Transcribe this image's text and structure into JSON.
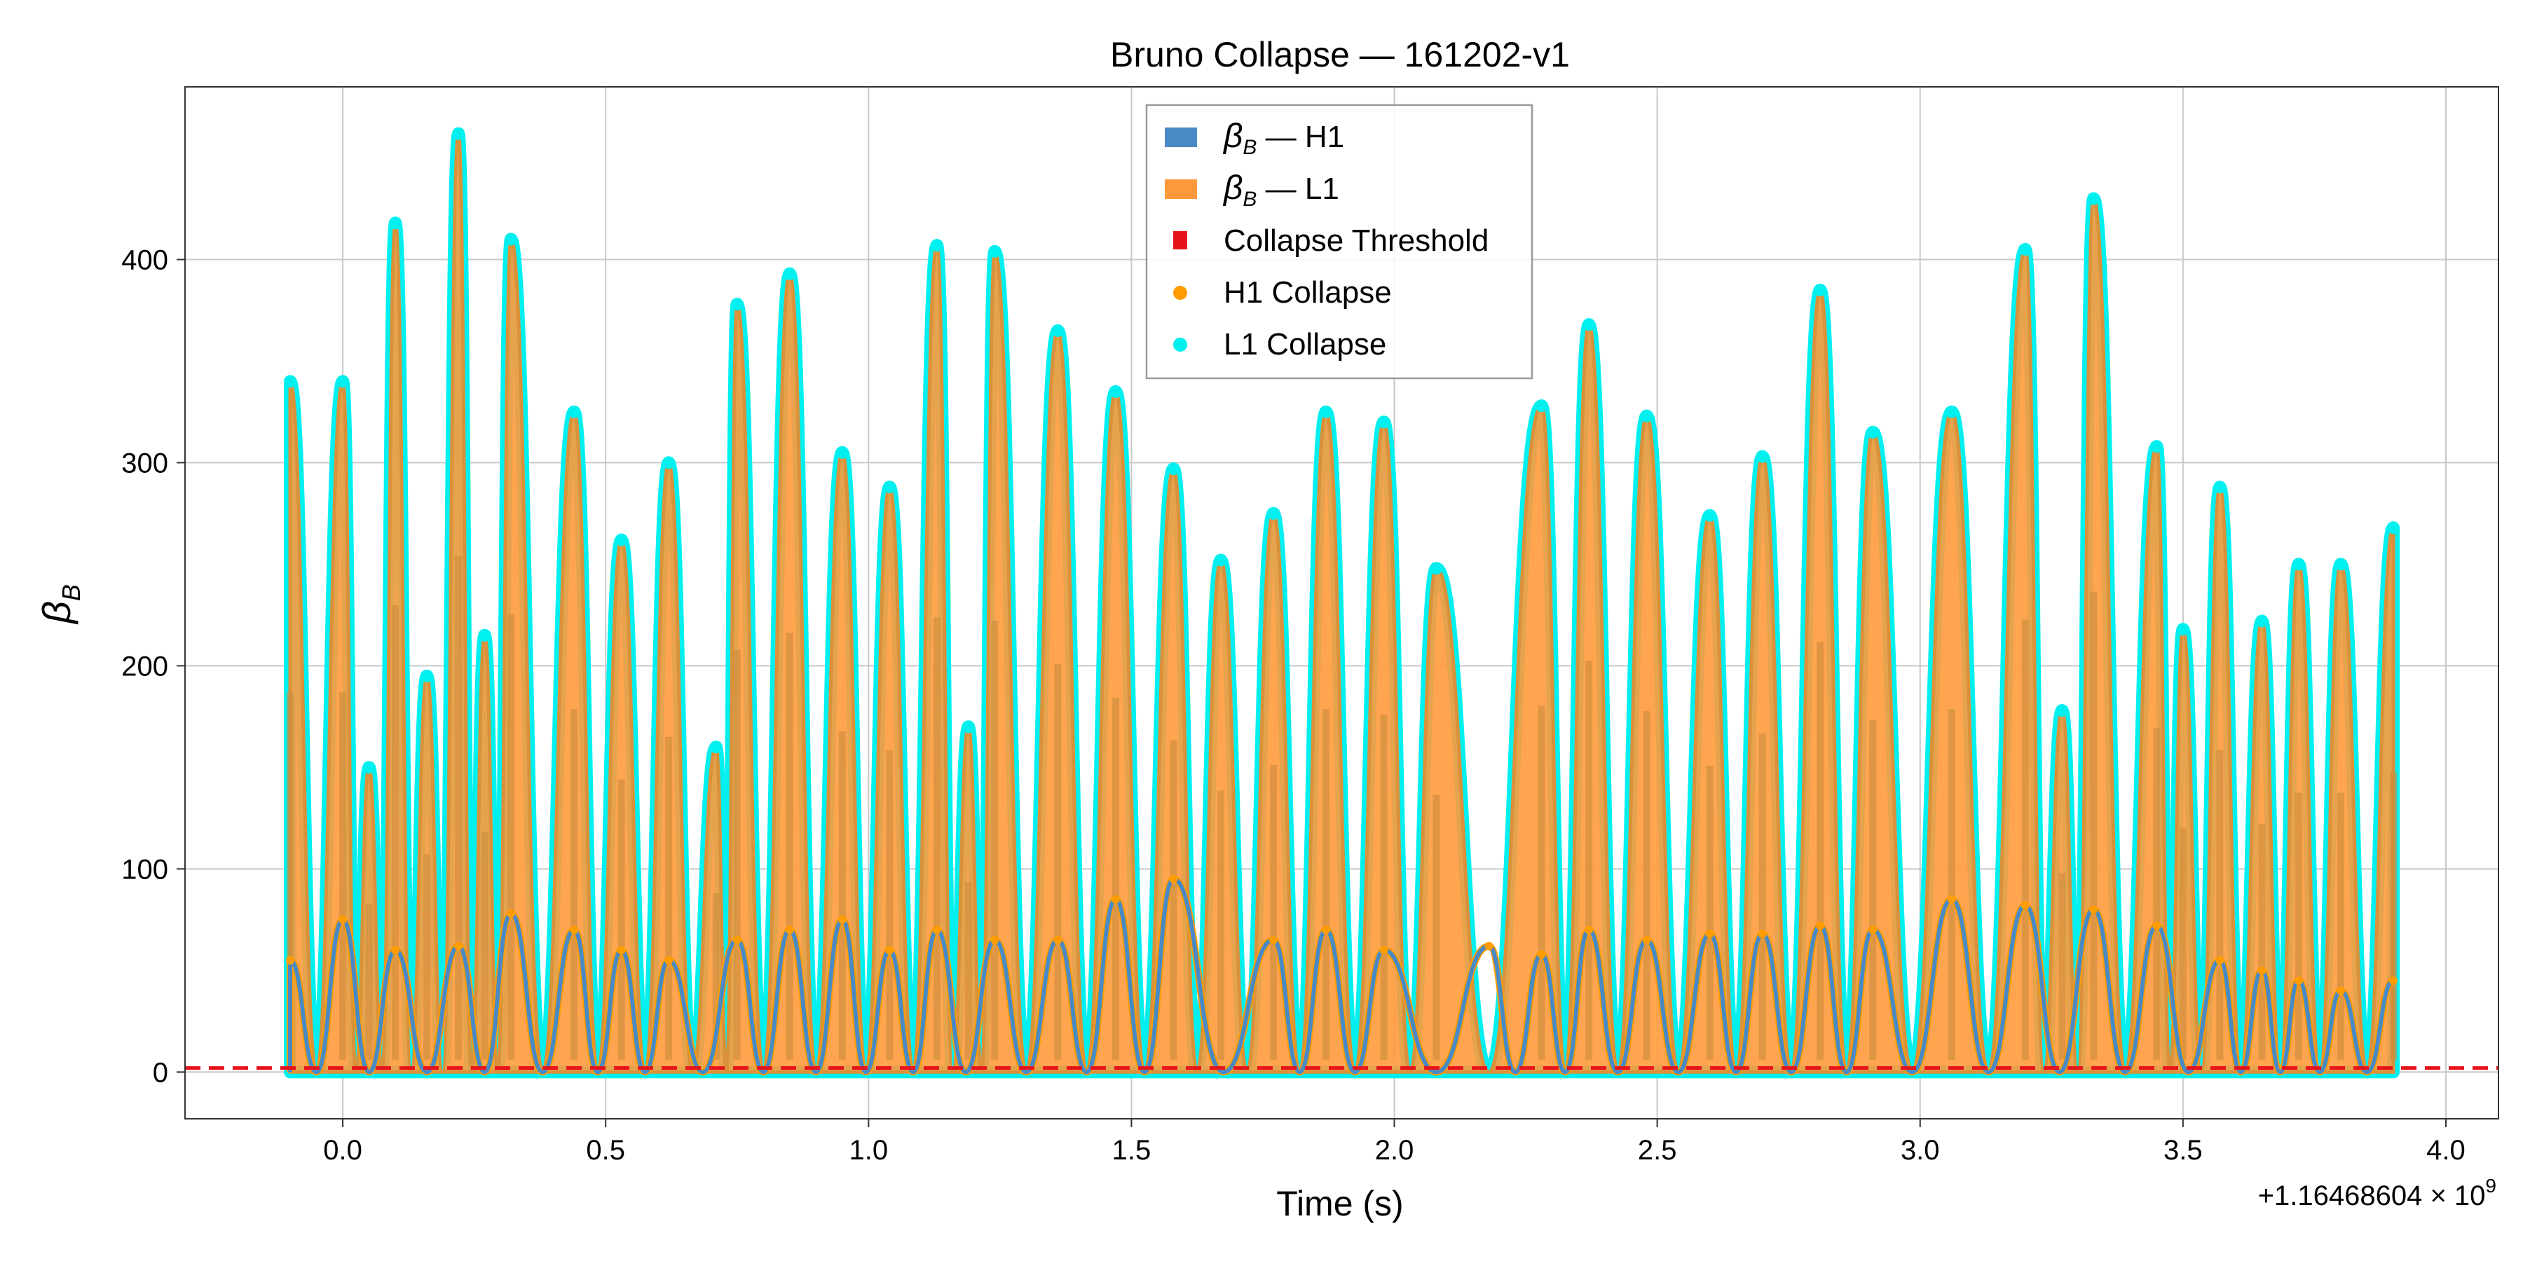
{
  "chart_data": {
    "type": "line",
    "title": "Bruno Collapse — 161202-v1",
    "xlabel": "Time (s)",
    "ylabel_symbol": "β",
    "ylabel_subscript": "B",
    "x_offset_text": "+1.16468604 × 10",
    "x_offset_exponent": "9",
    "xlim": [
      -0.3,
      4.1
    ],
    "ylim": [
      -23,
      485
    ],
    "x_ticks": [
      0.0,
      0.5,
      1.0,
      1.5,
      2.0,
      2.5,
      3.0,
      3.5,
      4.0
    ],
    "x_tick_labels": [
      "0.0",
      "0.5",
      "1.0",
      "1.5",
      "2.0",
      "2.5",
      "3.0",
      "3.5",
      "4.0"
    ],
    "y_ticks": [
      0,
      100,
      200,
      300,
      400
    ],
    "y_tick_labels": [
      "0",
      "100",
      "200",
      "300",
      "400"
    ],
    "grid": true,
    "legend_position": "top-center",
    "colors": {
      "h1": "#4a8ac4",
      "l1": "#ff9a3c",
      "h1_collapse": "#ff9d00",
      "l1_collapse": "#00f0f0",
      "threshold": "#e8141c"
    },
    "threshold": 2,
    "legend": [
      {
        "kind": "patch",
        "symbol": "β",
        "sub": "B",
        "label": " — H1",
        "color": "#4a8ac4"
      },
      {
        "kind": "patch",
        "symbol": "β",
        "sub": "B",
        "label": " — L1",
        "color": "#ff9a3c"
      },
      {
        "kind": "square",
        "label": "Collapse Threshold",
        "color": "#e8141c"
      },
      {
        "kind": "dot",
        "label": "H1 Collapse",
        "color": "#ff9d00"
      },
      {
        "kind": "dot",
        "label": "L1 Collapse",
        "color": "#00f0f0"
      }
    ],
    "series": [
      {
        "name": "β_B — L1",
        "peaks": [
          [
            -0.1,
            340
          ],
          [
            0.0,
            340
          ],
          [
            0.05,
            150
          ],
          [
            0.1,
            418
          ],
          [
            0.16,
            195
          ],
          [
            0.22,
            462
          ],
          [
            0.27,
            215
          ],
          [
            0.32,
            410
          ],
          [
            0.44,
            325
          ],
          [
            0.53,
            262
          ],
          [
            0.62,
            300
          ],
          [
            0.71,
            160
          ],
          [
            0.75,
            378
          ],
          [
            0.85,
            393
          ],
          [
            0.95,
            305
          ],
          [
            1.04,
            288
          ],
          [
            1.13,
            407
          ],
          [
            1.19,
            170
          ],
          [
            1.24,
            404
          ],
          [
            1.36,
            365
          ],
          [
            1.47,
            335
          ],
          [
            1.58,
            297
          ],
          [
            1.67,
            252
          ],
          [
            1.77,
            275
          ],
          [
            1.87,
            325
          ],
          [
            1.98,
            320
          ],
          [
            2.08,
            248
          ],
          [
            2.28,
            328
          ],
          [
            2.37,
            368
          ],
          [
            2.48,
            323
          ],
          [
            2.6,
            274
          ],
          [
            2.7,
            303
          ],
          [
            2.81,
            385
          ],
          [
            2.91,
            315
          ],
          [
            3.06,
            325
          ],
          [
            3.2,
            405
          ],
          [
            3.27,
            178
          ],
          [
            3.33,
            430
          ],
          [
            3.45,
            308
          ],
          [
            3.5,
            218
          ],
          [
            3.57,
            288
          ],
          [
            3.65,
            222
          ],
          [
            3.72,
            250
          ],
          [
            3.8,
            250
          ],
          [
            3.9,
            268
          ]
        ]
      },
      {
        "name": "β_B — H1",
        "peaks": [
          [
            -0.1,
            55
          ],
          [
            0.0,
            75
          ],
          [
            0.1,
            60
          ],
          [
            0.22,
            62
          ],
          [
            0.32,
            78
          ],
          [
            0.44,
            70
          ],
          [
            0.53,
            60
          ],
          [
            0.62,
            55
          ],
          [
            0.75,
            65
          ],
          [
            0.85,
            70
          ],
          [
            0.95,
            75
          ],
          [
            1.04,
            60
          ],
          [
            1.13,
            70
          ],
          [
            1.24,
            65
          ],
          [
            1.36,
            65
          ],
          [
            1.47,
            85
          ],
          [
            1.58,
            95
          ],
          [
            1.77,
            65
          ],
          [
            1.87,
            70
          ],
          [
            1.98,
            60
          ],
          [
            2.18,
            62
          ],
          [
            2.28,
            58
          ],
          [
            2.37,
            70
          ],
          [
            2.48,
            65
          ],
          [
            2.6,
            68
          ],
          [
            2.7,
            68
          ],
          [
            2.81,
            72
          ],
          [
            2.91,
            70
          ],
          [
            3.06,
            85
          ],
          [
            3.2,
            82
          ],
          [
            3.33,
            80
          ],
          [
            3.45,
            72
          ],
          [
            3.57,
            55
          ],
          [
            3.65,
            50
          ],
          [
            3.72,
            45
          ],
          [
            3.8,
            40
          ],
          [
            3.9,
            45
          ]
        ]
      }
    ]
  }
}
